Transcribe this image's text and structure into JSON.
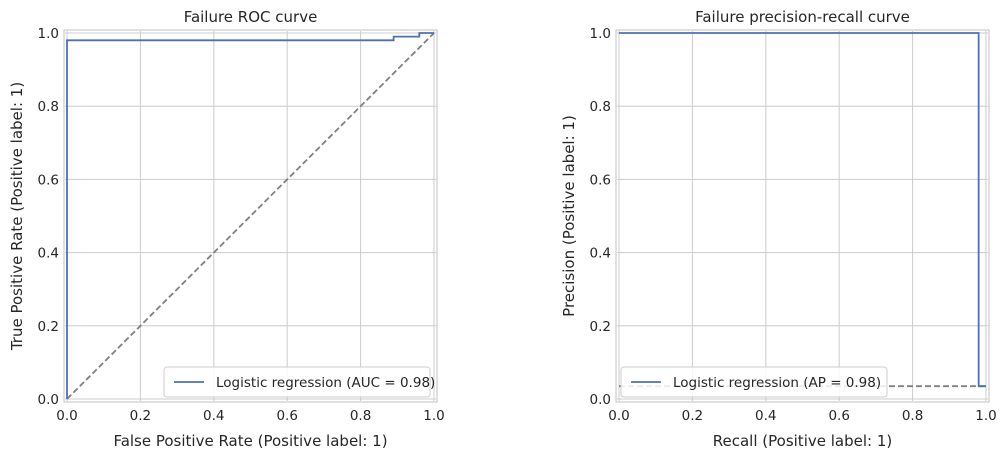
{
  "chart_data": [
    {
      "type": "line",
      "title": "Failure ROC curve",
      "xlabel": "False Positive Rate (Positive label: 1)",
      "ylabel": "True Positive Rate (Positive label: 1)",
      "xlim": [
        0,
        1
      ],
      "ylim": [
        0,
        1
      ],
      "grid": true,
      "legend_position": "bottom-right",
      "xticks": [
        "0.0",
        "0.2",
        "0.4",
        "0.6",
        "0.8",
        "1.0"
      ],
      "yticks": [
        "0.0",
        "0.2",
        "0.4",
        "0.6",
        "0.8",
        "1.0"
      ],
      "series": [
        {
          "name": "Logistic regression (AUC = 0.98)",
          "color": "#4c72b0",
          "style": "solid",
          "x": [
            0.0,
            0.0,
            0.0,
            0.89,
            0.89,
            0.96,
            0.96,
            1.0
          ],
          "y": [
            0.0,
            0.0,
            0.98,
            0.98,
            0.99,
            0.99,
            1.0,
            1.0
          ]
        },
        {
          "name": "",
          "color": "#808080",
          "style": "dashed",
          "x": [
            0.0,
            1.0
          ],
          "y": [
            0.0,
            1.0
          ]
        }
      ]
    },
    {
      "type": "line",
      "title": "Failure precision-recall curve",
      "xlabel": "Recall (Positive label: 1)",
      "ylabel": "Precision (Positive label: 1)",
      "xlim": [
        0,
        1
      ],
      "ylim": [
        0,
        1
      ],
      "grid": true,
      "legend_position": "bottom-left",
      "xticks": [
        "0.0",
        "0.2",
        "0.4",
        "0.6",
        "0.8",
        "1.0"
      ],
      "yticks": [
        "0.0",
        "0.2",
        "0.4",
        "0.6",
        "0.8",
        "1.0"
      ],
      "series": [
        {
          "name": "Logistic regression (AP = 0.98)",
          "color": "#4c72b0",
          "style": "solid",
          "x": [
            0.0,
            0.98,
            0.98,
            1.0
          ],
          "y": [
            1.0,
            1.0,
            0.035,
            0.035
          ]
        },
        {
          "name": "",
          "color": "#808080",
          "style": "dashed",
          "x": [
            0.0,
            1.0
          ],
          "y": [
            0.035,
            0.035
          ]
        }
      ]
    }
  ]
}
